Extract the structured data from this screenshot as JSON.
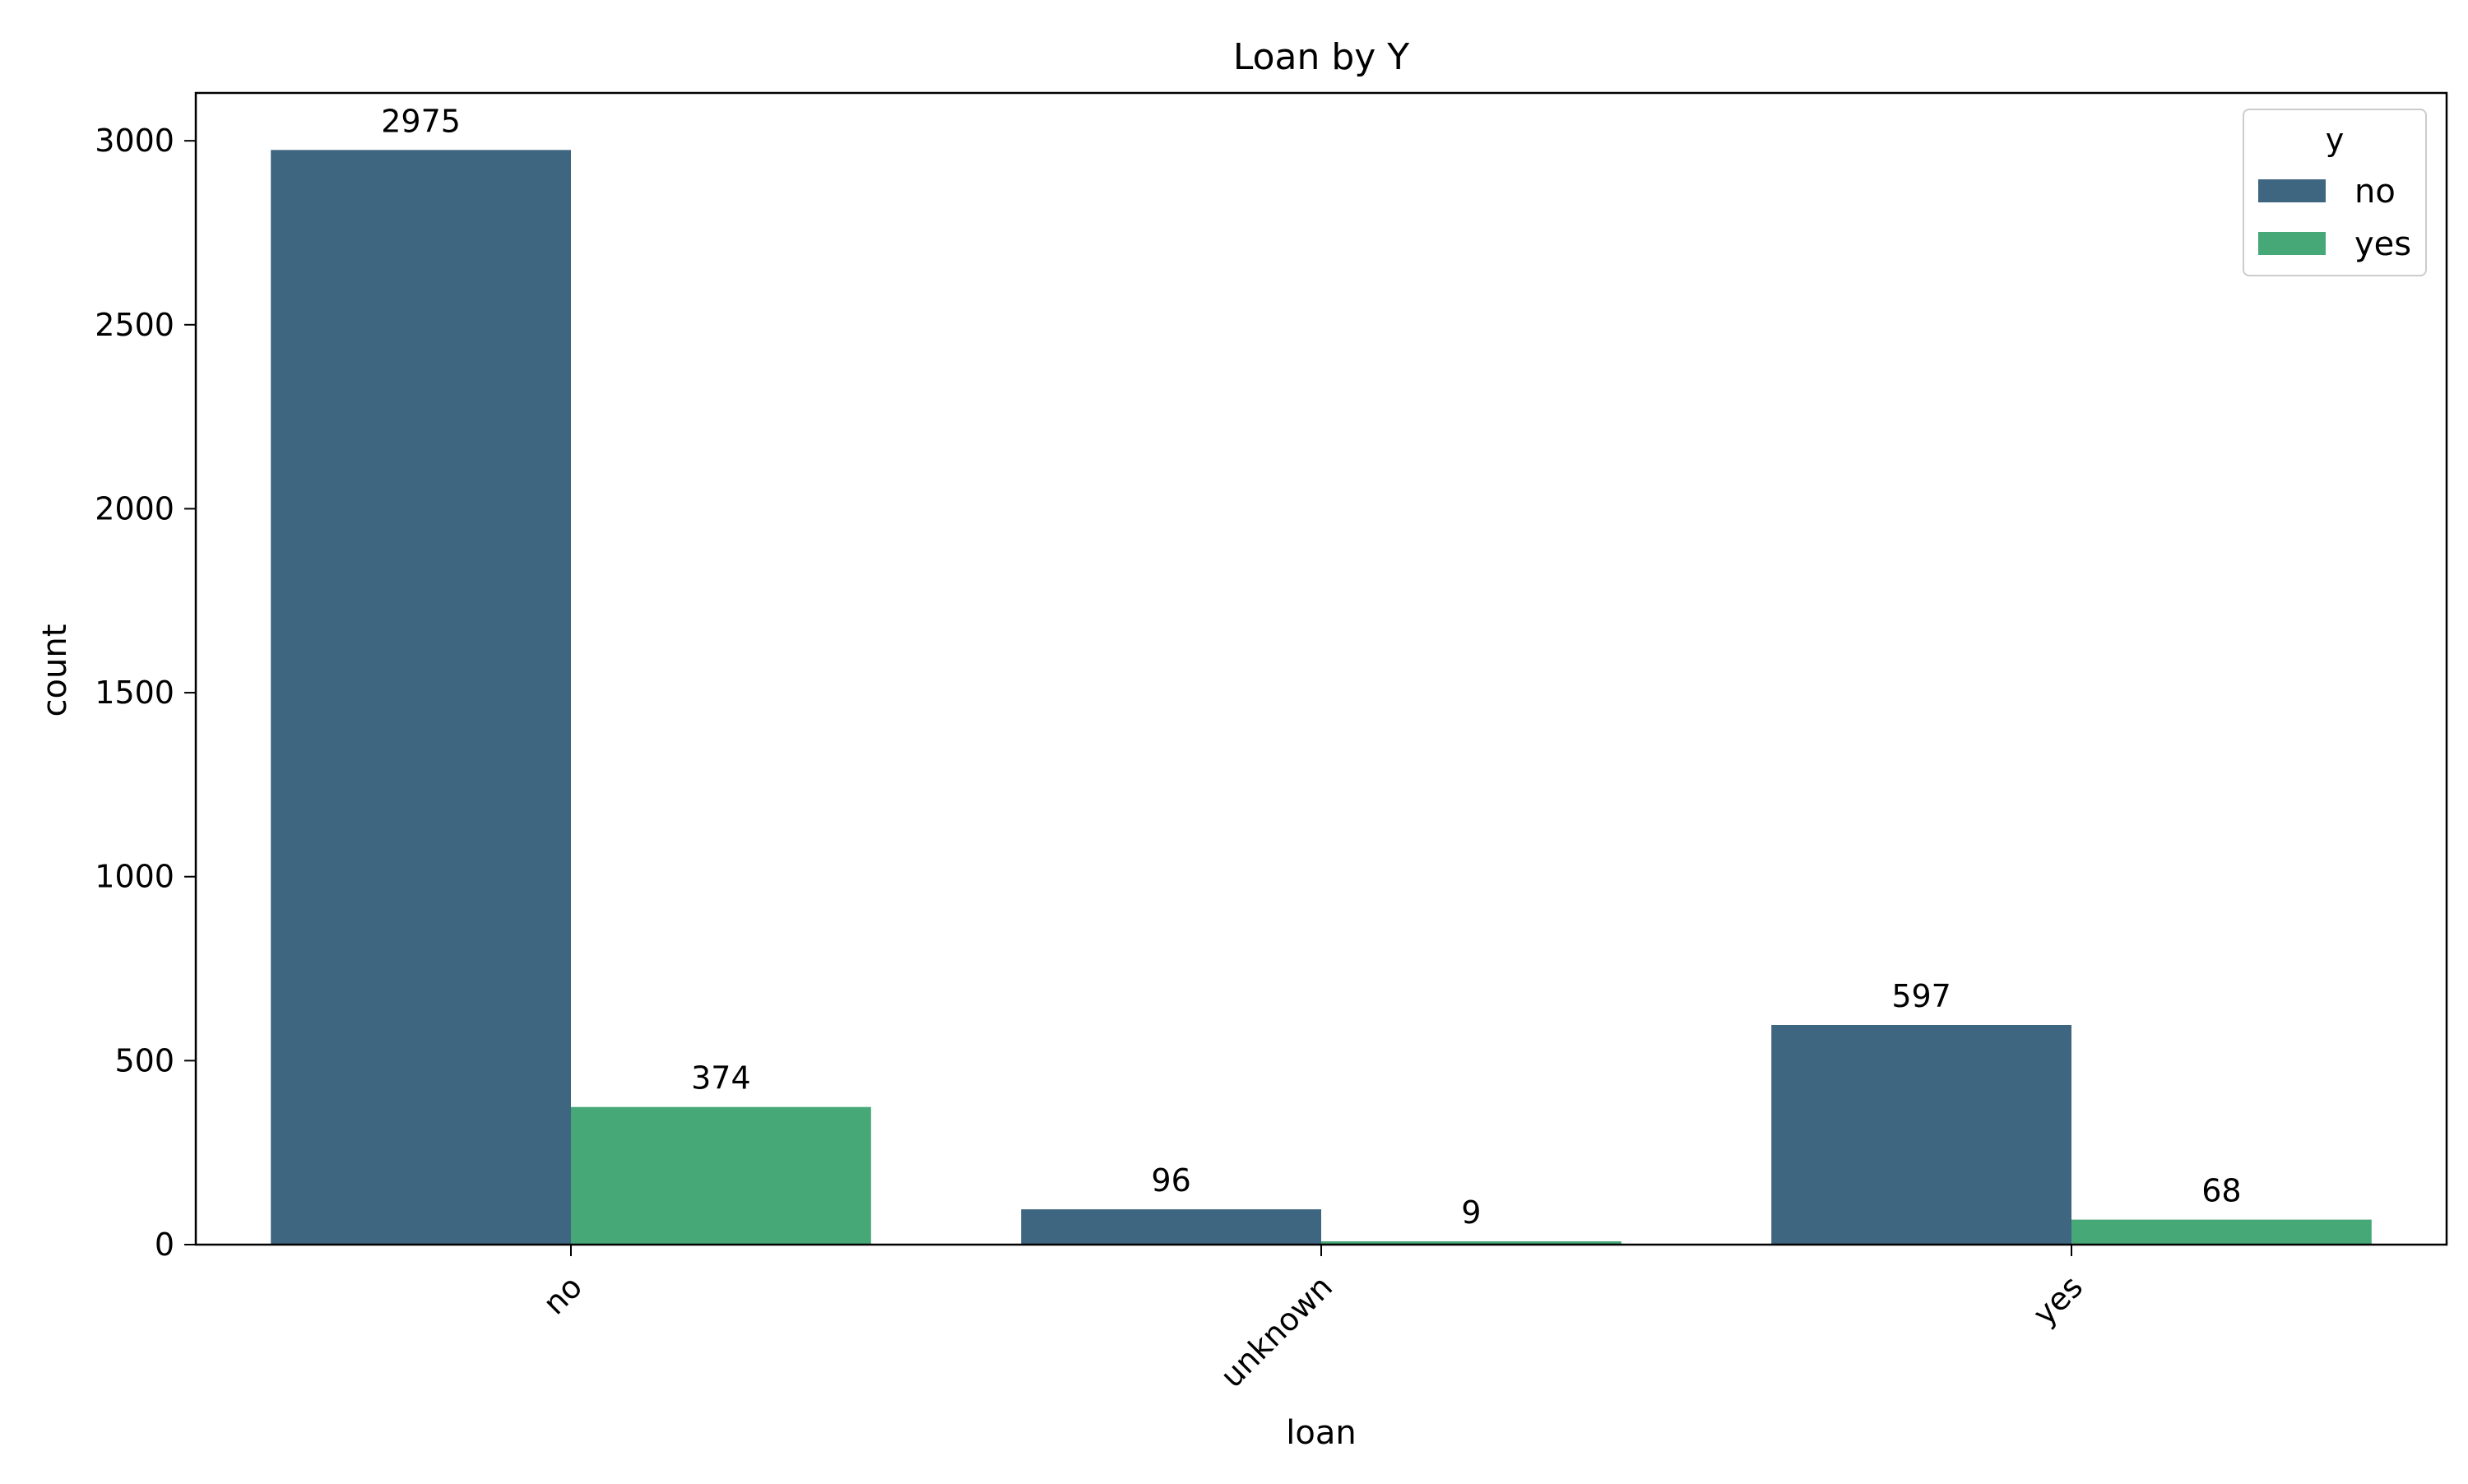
{
  "chart_data": {
    "type": "bar",
    "title": "Loan by Y",
    "xlabel": "loan",
    "ylabel": "count",
    "categories": [
      "no",
      "unknown",
      "yes"
    ],
    "series": [
      {
        "name": "no",
        "color": "#3e6680",
        "values": [
          2975,
          96,
          597
        ]
      },
      {
        "name": "yes",
        "color": "#46a877",
        "values": [
          374,
          9,
          68
        ]
      }
    ],
    "ylim": [
      0,
      3130
    ],
    "yticks": [
      0,
      500,
      1000,
      1500,
      2000,
      2500,
      3000
    ],
    "grid": false,
    "legend": {
      "title": "y",
      "position": "top-right"
    }
  }
}
